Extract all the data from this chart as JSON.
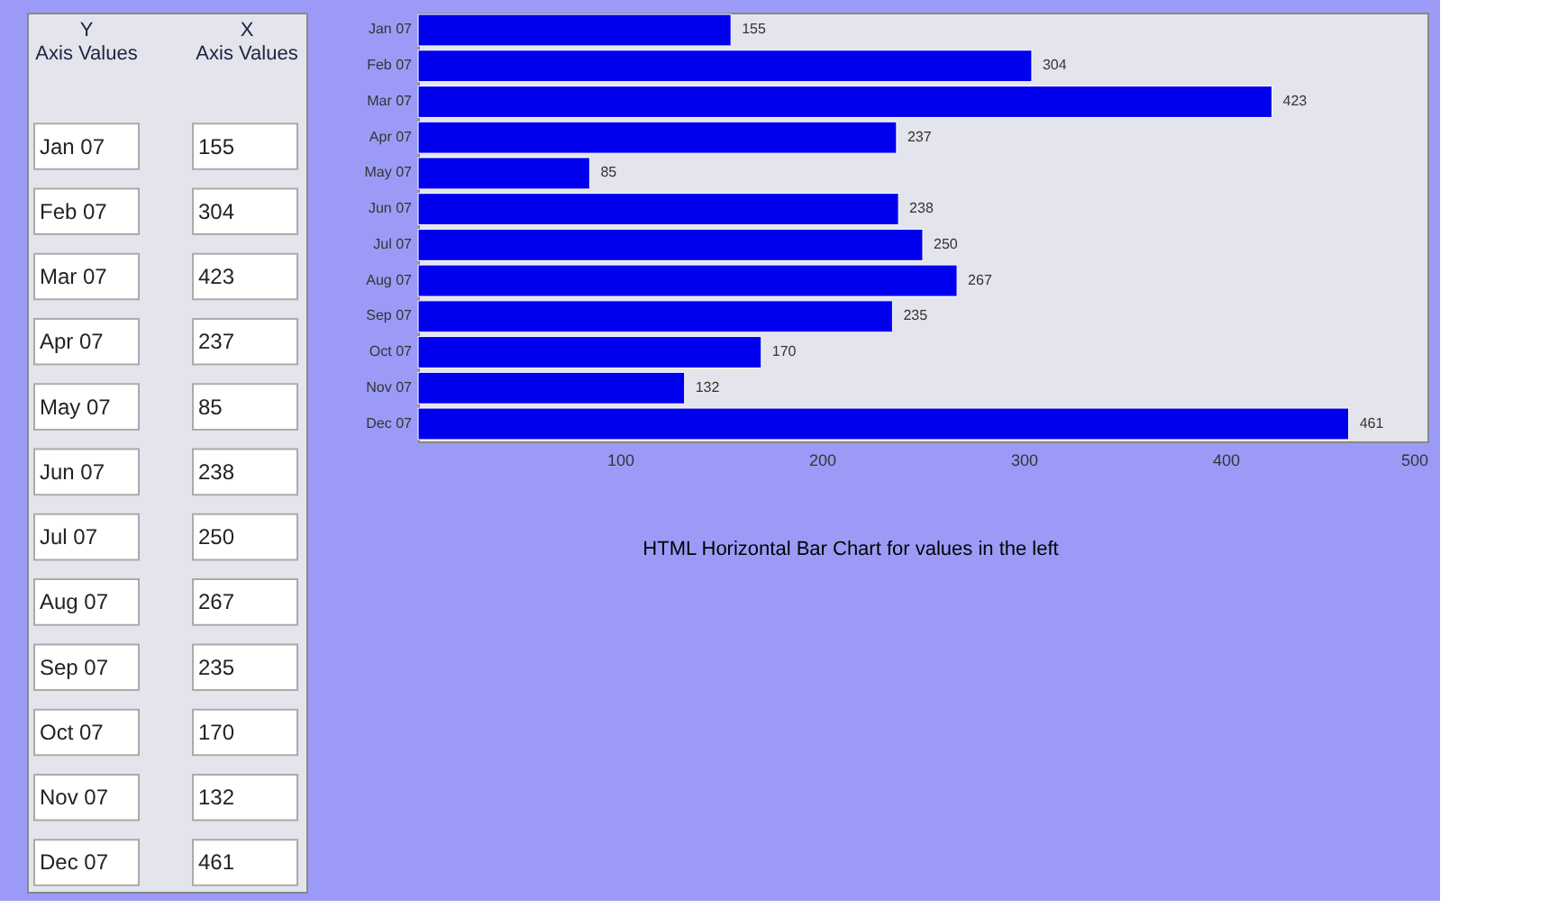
{
  "chart_data": [
    {
      "type": "other",
      "annotations": [
        "Y Axis Values",
        "X Axis Values",
        "Jan 07",
        "155",
        "Feb 07",
        "304",
        "Mar 07",
        "423",
        "Apr 07",
        "237",
        "May 07",
        "85",
        "Jun 07",
        "238",
        "Jul 07",
        "250",
        "Aug 07",
        "267",
        "Sep 07",
        "235",
        "Oct 07",
        "170",
        "Nov 07",
        "132",
        "Dec 07",
        "461"
      ]
    },
    {
      "type": "bar",
      "orientation": "horizontal",
      "categories": [
        "Jan 07",
        "Feb 07",
        "Mar 07",
        "Apr 07",
        "May 07",
        "Jun 07",
        "Jul 07",
        "Aug 07",
        "Sep 07",
        "Oct 07",
        "Nov 07",
        "Dec 07"
      ],
      "values": [
        155,
        304,
        423,
        237,
        85,
        238,
        250,
        267,
        235,
        170,
        132,
        461
      ],
      "color": "#0000ee",
      "xlim": [
        0,
        500
      ],
      "xticks": [
        100,
        200,
        300,
        400,
        500
      ],
      "data_labels": true,
      "grid": false,
      "annotations": [
        "HTML Horizontal Bar Chart for values in the left"
      ]
    }
  ]
}
